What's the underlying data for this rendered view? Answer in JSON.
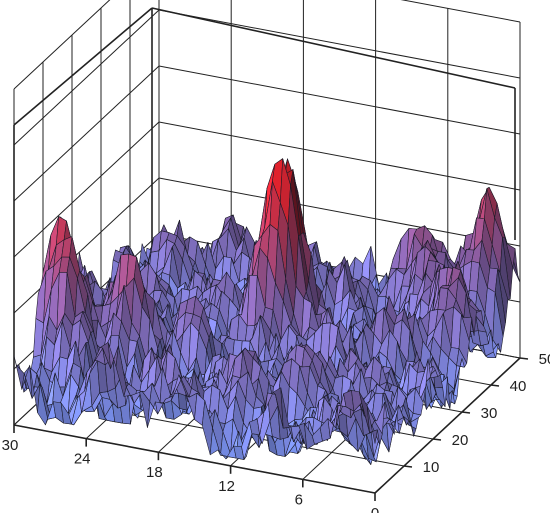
{
  "chart_data": {
    "type": "surface3d",
    "title": "",
    "xlabel": "",
    "ylabel": "",
    "zlabel": "",
    "x_axis": {
      "range": [
        0,
        30
      ],
      "ticks": [
        "30",
        "24",
        "18",
        "12",
        "6",
        "0"
      ]
    },
    "y_axis": {
      "range": [
        0,
        50
      ],
      "ticks": [
        "10",
        "20",
        "30",
        "40",
        "50"
      ]
    },
    "z_axis": {
      "ticks": []
    },
    "grid": true,
    "colormap": {
      "low": "#7d9cff",
      "mid": "#7b5a9e",
      "high": "#d3202a"
    },
    "peaks": [
      {
        "x": 14,
        "y": 26,
        "height": 1.0,
        "note": "tallest red spike"
      },
      {
        "x": 28,
        "y": 10,
        "height": 0.55
      },
      {
        "x": 24,
        "y": 14,
        "height": 0.4
      },
      {
        "x": 3,
        "y": 38,
        "height": 0.45
      },
      {
        "x": 2,
        "y": 48,
        "height": 0.42
      },
      {
        "x": 6,
        "y": 44,
        "height": 0.35
      }
    ]
  }
}
